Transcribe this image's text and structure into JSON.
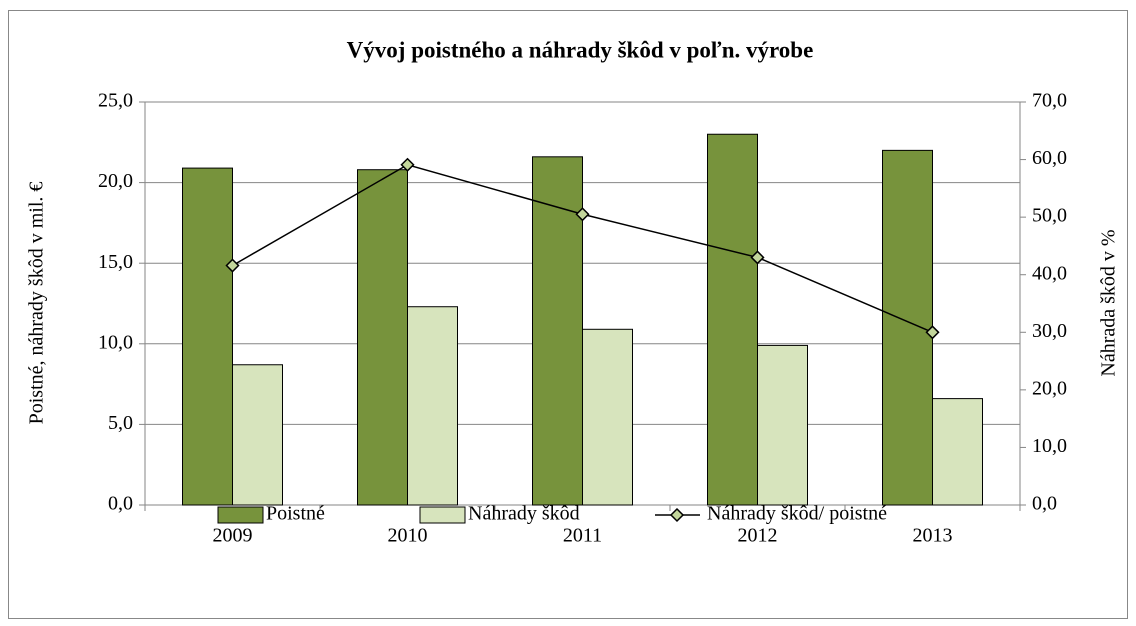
{
  "chart_data": {
    "type": "bar",
    "title": "Vývoj poistného a náhrady škôd v poľn. výrobe",
    "y_label": "Poistné,  náhrady škôd v mil. €",
    "y2_label": "Náhrada škôd v %",
    "categories": [
      "2009",
      "2010",
      "2011",
      "2012",
      "2013"
    ],
    "series": [
      {
        "name": "Poistné",
        "color": "#77933c",
        "values": [
          20.9,
          20.8,
          21.6,
          23.0,
          22.0
        ]
      },
      {
        "name": "Náhrady škôd",
        "color": "#d7e4bd",
        "values": [
          8.7,
          12.3,
          10.9,
          9.9,
          6.6
        ]
      },
      {
        "name": "Náhrady škôd/ poistné",
        "type": "line",
        "axis": "y2",
        "color": "#000000",
        "marker_color": "#c3d69b",
        "values": [
          41.6,
          59.1,
          50.5,
          43.0,
          30.0
        ]
      }
    ],
    "ylim": [
      0,
      25
    ],
    "yticks": [
      {
        "value": 0,
        "label": "0,0"
      },
      {
        "value": 5,
        "label": "5,0"
      },
      {
        "value": 10,
        "label": "10,0"
      },
      {
        "value": 15,
        "label": "15,0"
      },
      {
        "value": 20,
        "label": "20,0"
      },
      {
        "value": 25,
        "label": "25,0"
      }
    ],
    "y2lim": [
      0,
      70
    ],
    "y2ticks": [
      {
        "value": 0,
        "label": "0,0"
      },
      {
        "value": 10,
        "label": "10,0"
      },
      {
        "value": 20,
        "label": "20,0"
      },
      {
        "value": 30,
        "label": "30,0"
      },
      {
        "value": 40,
        "label": "40,0"
      },
      {
        "value": 50,
        "label": "50,0"
      },
      {
        "value": 60,
        "label": "60,0"
      },
      {
        "value": 70,
        "label": "70,0"
      }
    ],
    "grid": true,
    "legend": "bottom"
  }
}
